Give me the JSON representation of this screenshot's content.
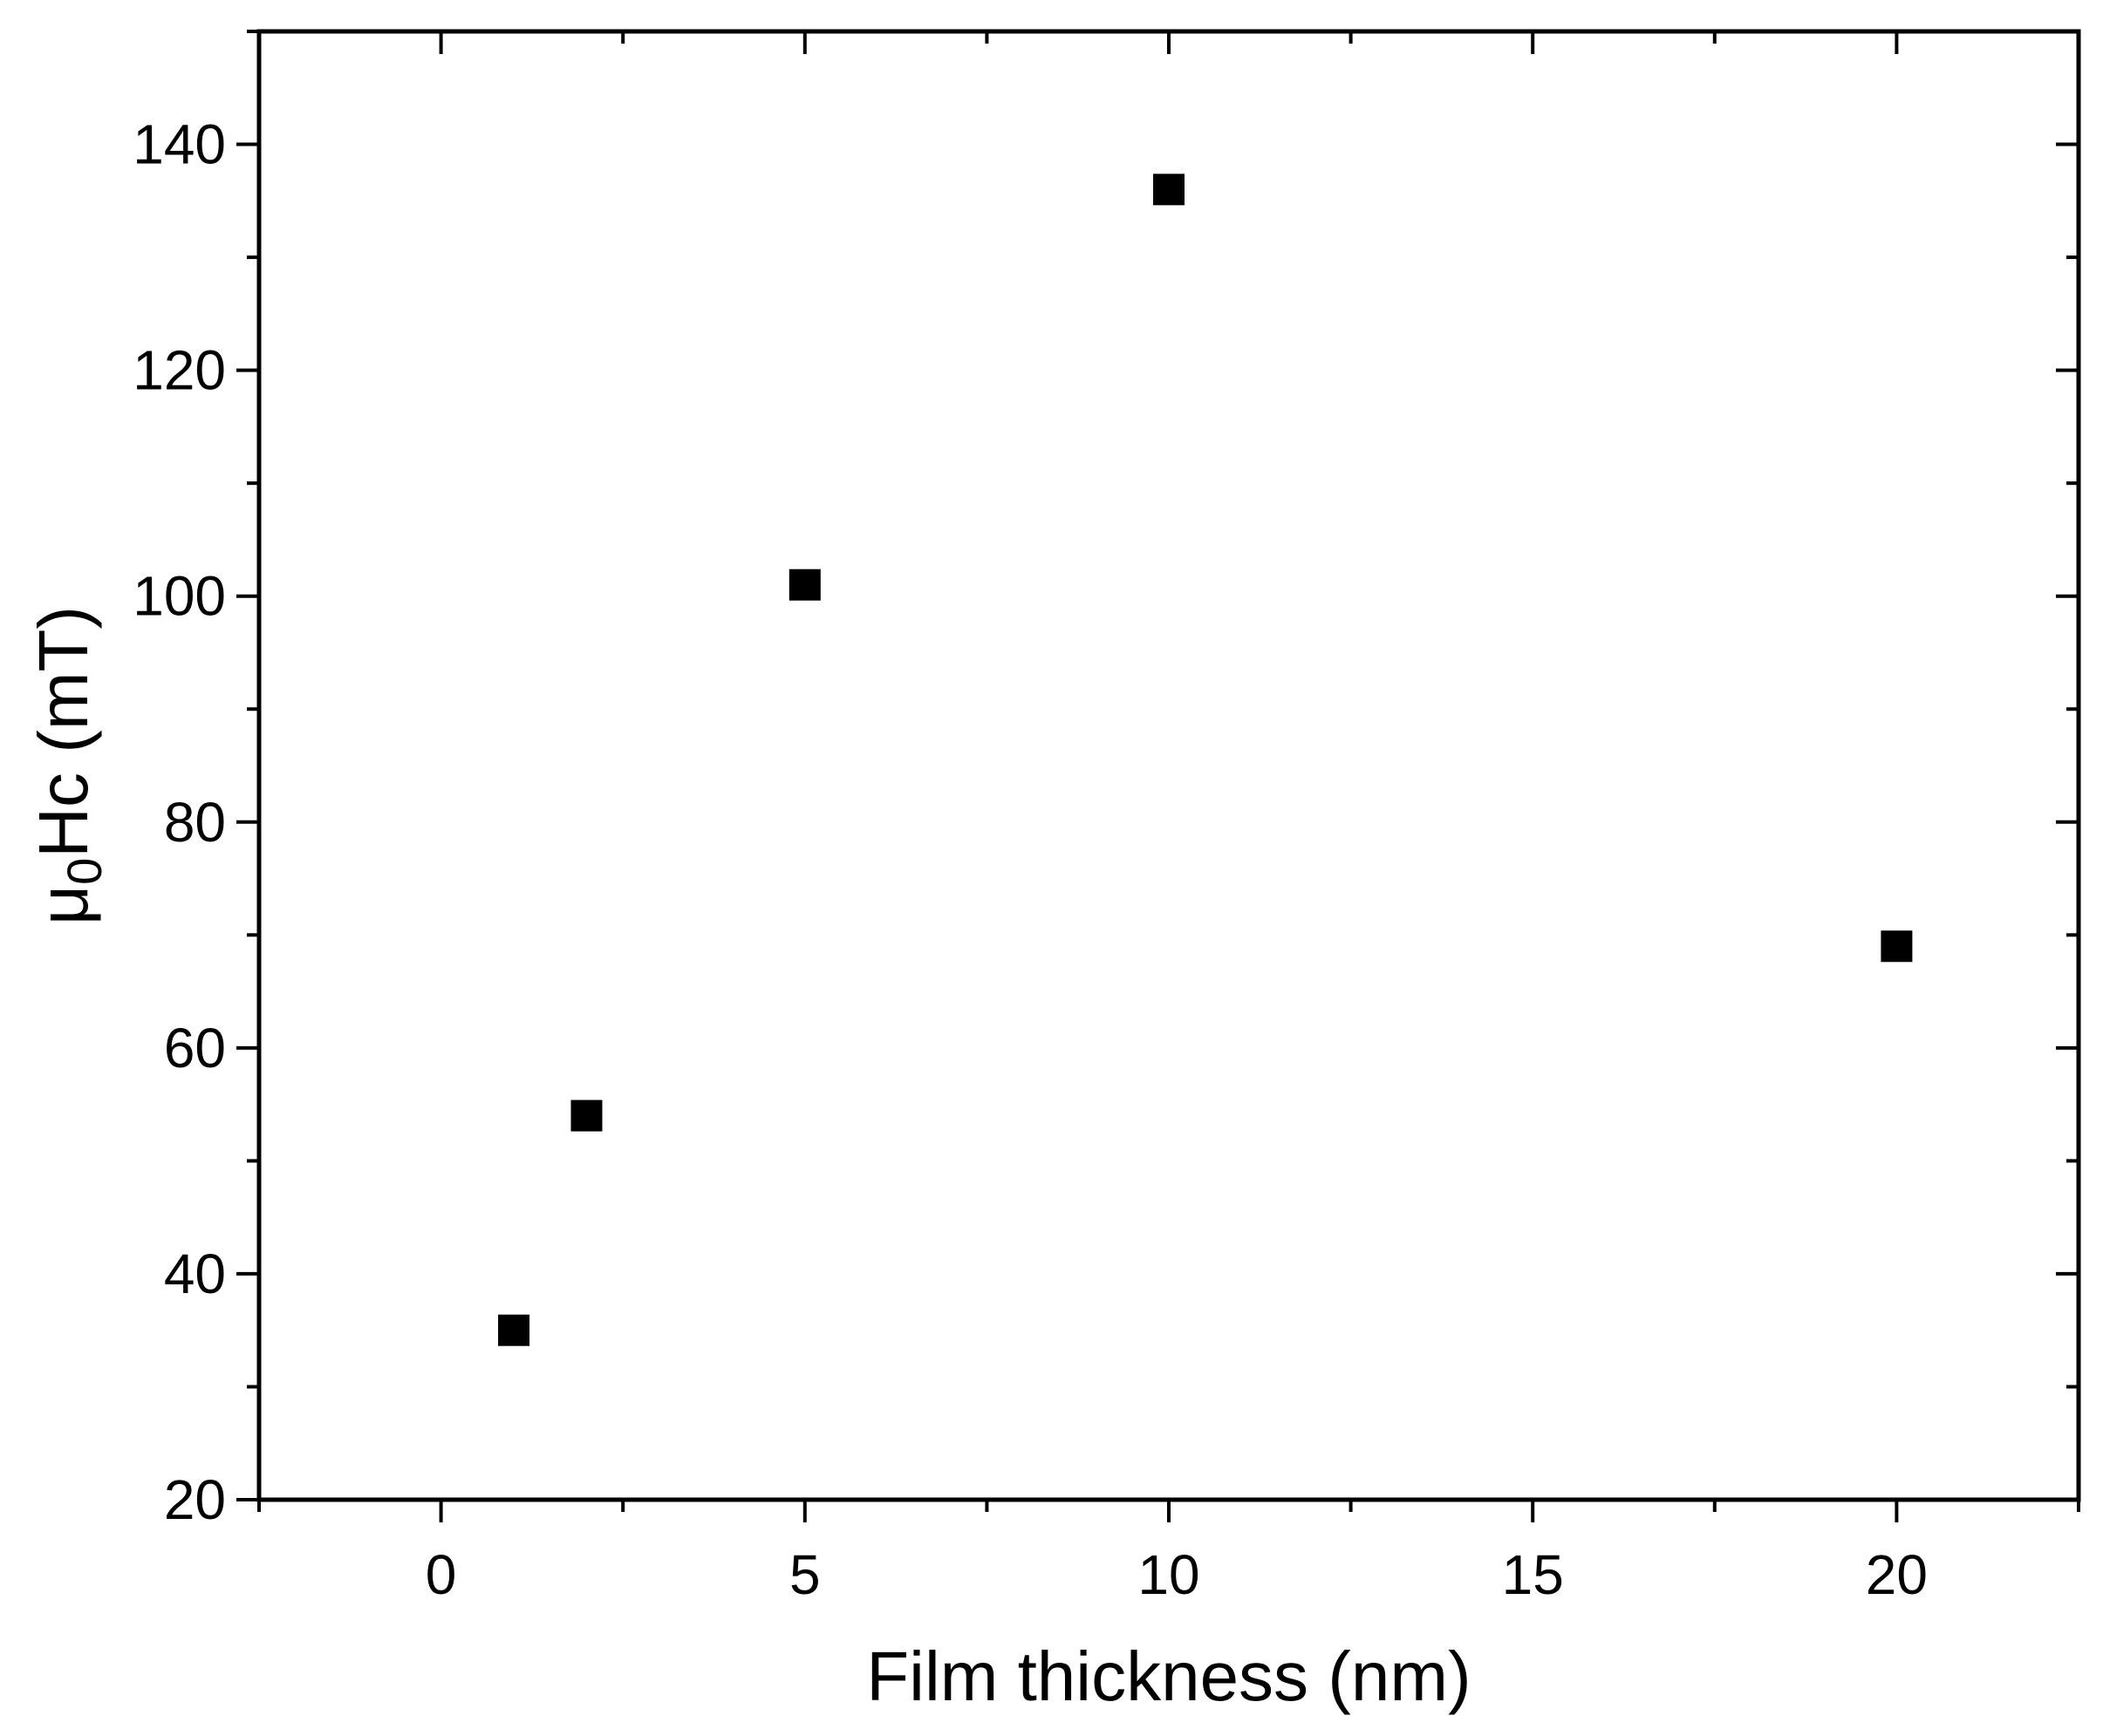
{
  "chart_data": {
    "type": "scatter",
    "title": "",
    "xlabel": "Film thickness (nm)",
    "ylabel_parts": {
      "mu": "μ",
      "sub": "0",
      "rest": "Hc (mT)"
    },
    "xlim": [
      -2.5,
      22.5
    ],
    "ylim": [
      20,
      150
    ],
    "x_ticks": [
      0,
      5,
      10,
      15,
      20
    ],
    "x_minor_ticks": [
      -2.5,
      2.5,
      7.5,
      12.5,
      17.5,
      22.5
    ],
    "y_ticks": [
      20,
      40,
      60,
      80,
      100,
      120,
      140
    ],
    "y_minor_ticks": [
      30,
      50,
      70,
      90,
      110,
      130,
      150
    ],
    "marker": "square",
    "color": "#000000",
    "grid": false,
    "legend": "none",
    "points": [
      {
        "x": 1,
        "y": 35
      },
      {
        "x": 2,
        "y": 54
      },
      {
        "x": 5,
        "y": 101
      },
      {
        "x": 10,
        "y": 136
      },
      {
        "x": 20,
        "y": 69
      }
    ]
  }
}
